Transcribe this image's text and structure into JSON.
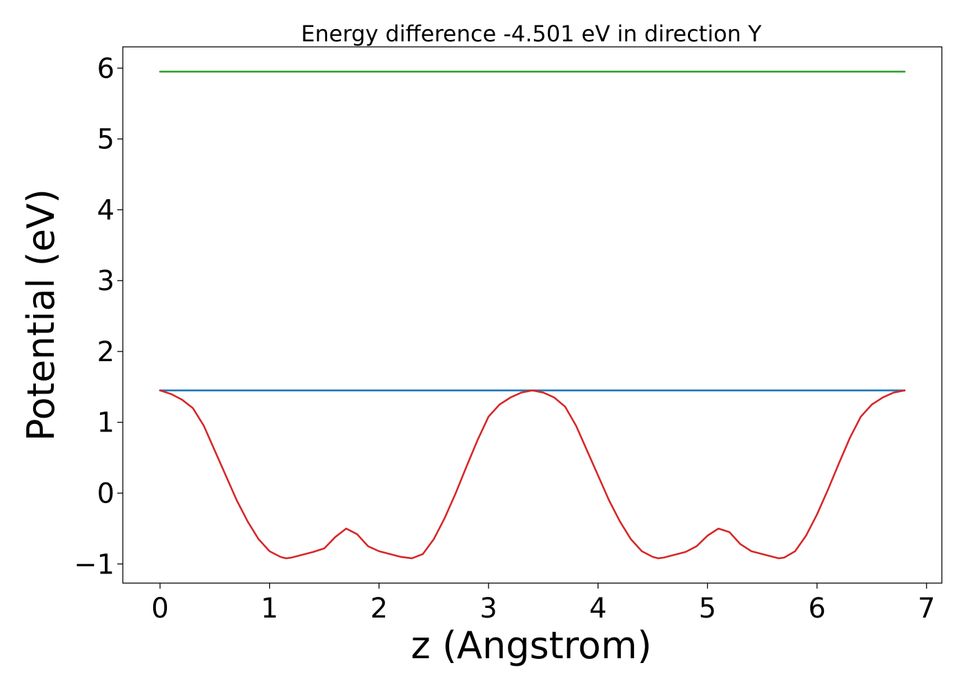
{
  "chart_data": {
    "type": "line",
    "title": "Energy difference -4.501 eV in direction Y",
    "xlabel": "z (Angstrom)",
    "ylabel": "Potential (eV)",
    "xlim": [
      -0.34,
      7.14
    ],
    "ylim": [
      -1.27,
      6.3
    ],
    "xticks": [
      0,
      1,
      2,
      3,
      4,
      5,
      6,
      7
    ],
    "xtick_labels": [
      "0",
      "1",
      "2",
      "3",
      "4",
      "5",
      "6",
      "7"
    ],
    "yticks": [
      -1,
      0,
      1,
      2,
      3,
      4,
      5,
      6
    ],
    "ytick_labels": [
      "−1",
      "0",
      "1",
      "2",
      "3",
      "4",
      "5",
      "6"
    ],
    "grid": false,
    "legend": "none",
    "series": [
      {
        "color": "#2ca02c",
        "x": [
          0.0,
          6.8
        ],
        "y": [
          5.95,
          5.95
        ]
      },
      {
        "color": "#1f77b4",
        "x": [
          0.0,
          6.8
        ],
        "y": [
          1.45,
          1.45
        ]
      },
      {
        "color": "#d62728",
        "x": [
          0.0,
          0.1,
          0.2,
          0.3,
          0.4,
          0.5,
          0.6,
          0.7,
          0.8,
          0.9,
          1.0,
          1.1,
          1.15,
          1.2,
          1.3,
          1.4,
          1.5,
          1.6,
          1.7,
          1.8,
          1.9,
          2.0,
          2.1,
          2.2,
          2.3,
          2.4,
          2.5,
          2.6,
          2.7,
          2.8,
          2.9,
          3.0,
          3.1,
          3.2,
          3.3,
          3.4,
          3.5,
          3.6,
          3.7,
          3.8,
          3.9,
          4.0,
          4.1,
          4.2,
          4.3,
          4.4,
          4.5,
          4.55,
          4.6,
          4.7,
          4.8,
          4.9,
          5.0,
          5.1,
          5.2,
          5.3,
          5.4,
          5.5,
          5.6,
          5.65,
          5.7,
          5.8,
          5.9,
          6.0,
          6.1,
          6.2,
          6.3,
          6.4,
          6.5,
          6.6,
          6.7,
          6.8
        ],
        "y": [
          1.45,
          1.4,
          1.32,
          1.2,
          0.95,
          0.6,
          0.25,
          -0.1,
          -0.4,
          -0.65,
          -0.82,
          -0.9,
          -0.92,
          -0.91,
          -0.87,
          -0.83,
          -0.78,
          -0.62,
          -0.5,
          -0.58,
          -0.75,
          -0.82,
          -0.86,
          -0.9,
          -0.92,
          -0.86,
          -0.65,
          -0.35,
          0.0,
          0.38,
          0.75,
          1.08,
          1.25,
          1.35,
          1.42,
          1.45,
          1.42,
          1.35,
          1.22,
          0.95,
          0.6,
          0.25,
          -0.1,
          -0.4,
          -0.65,
          -0.82,
          -0.9,
          -0.92,
          -0.91,
          -0.87,
          -0.83,
          -0.75,
          -0.6,
          -0.5,
          -0.55,
          -0.72,
          -0.82,
          -0.86,
          -0.9,
          -0.92,
          -0.91,
          -0.82,
          -0.6,
          -0.3,
          0.05,
          0.42,
          0.78,
          1.08,
          1.25,
          1.35,
          1.42,
          1.45
        ]
      }
    ]
  }
}
